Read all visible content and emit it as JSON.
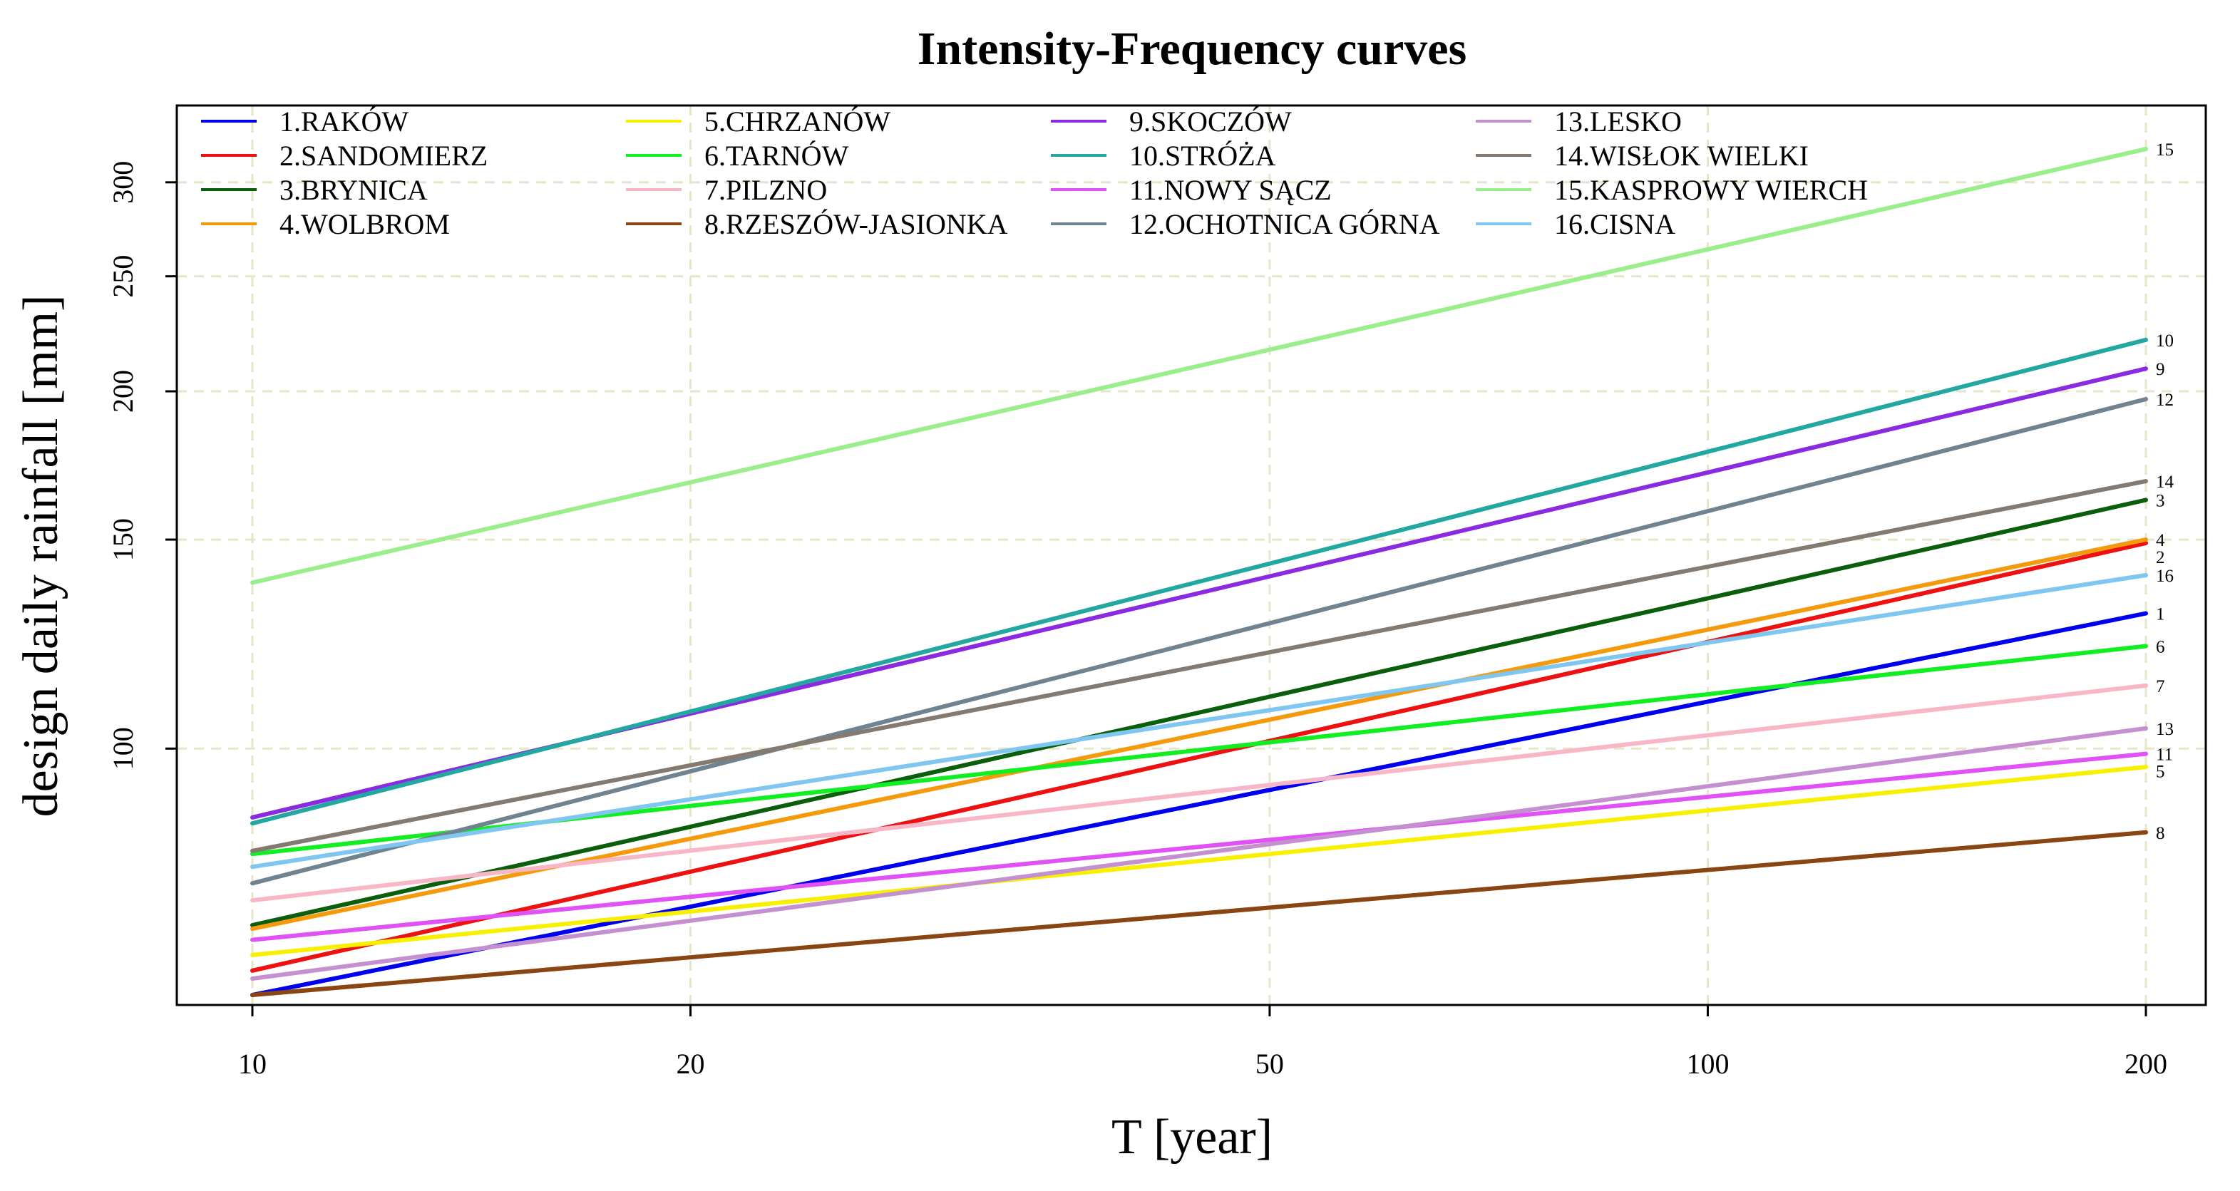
{
  "chart_data": {
    "type": "line",
    "title": "Intensity-Frequency curves",
    "xlabel": "T [year]",
    "ylabel": "design daily rainfall [mm]",
    "xscale": "log",
    "yscale": "log",
    "xlim": [
      10,
      200
    ],
    "ylim": [
      62,
      335
    ],
    "x_ticks": [
      10,
      20,
      50,
      100,
      200
    ],
    "y_ticks": [
      100,
      150,
      200,
      250,
      300
    ],
    "grid": true,
    "legend": {
      "position": "top-left",
      "columns": 4
    },
    "x": [
      10,
      200
    ],
    "series": [
      {
        "id": "1",
        "name": "1.RAKÓW",
        "color": "#0000ee",
        "values": [
          62,
          130
        ]
      },
      {
        "id": "2",
        "name": "2.SANDOMIERZ",
        "color": "#ee1111",
        "values": [
          65,
          149
        ]
      },
      {
        "id": "3",
        "name": "3.BRYNICA",
        "color": "#0b5e0b",
        "values": [
          71,
          162
        ]
      },
      {
        "id": "4",
        "name": "4.WOLBROM",
        "color": "#f59a0c",
        "values": [
          70.5,
          150
        ]
      },
      {
        "id": "5",
        "name": "5.CHRZANÓW",
        "color": "#f8f000",
        "values": [
          67,
          96.5
        ]
      },
      {
        "id": "6",
        "name": "6.TARNÓW",
        "color": "#11ee22",
        "values": [
          81.5,
          122
        ]
      },
      {
        "id": "7",
        "name": "7.PILZNO",
        "color": "#f7b7c7",
        "values": [
          74.5,
          113
        ]
      },
      {
        "id": "8",
        "name": "8.RZESZÓW-JASIONKA",
        "color": "#8b4513",
        "values": [
          62,
          85
        ]
      },
      {
        "id": "9",
        "name": "9.SKOCZÓW",
        "color": "#8a2be2",
        "values": [
          87.5,
          209
        ]
      },
      {
        "id": "10",
        "name": "10.STRÓŻA",
        "color": "#22a8a0",
        "values": [
          86.5,
          221
        ]
      },
      {
        "id": "11",
        "name": "11.NOWY SĄCZ",
        "color": "#e052f5",
        "values": [
          69,
          99
        ]
      },
      {
        "id": "12",
        "name": "12.OCHOTNICA GÓRNA",
        "color": "#6f8390",
        "values": [
          77,
          197
        ]
      },
      {
        "id": "13",
        "name": "13.LESKO",
        "color": "#c490d0",
        "values": [
          64,
          104
        ]
      },
      {
        "id": "14",
        "name": "14.WISŁOK WIELKI",
        "color": "#857a72",
        "values": [
          82,
          168
        ]
      },
      {
        "id": "15",
        "name": "15.KASPROWY WIERCH",
        "color": "#9aee8c",
        "values": [
          138,
          320
        ]
      },
      {
        "id": "16",
        "name": "16.CISNA",
        "color": "#7fc6f0",
        "values": [
          79.5,
          140
        ]
      }
    ]
  }
}
